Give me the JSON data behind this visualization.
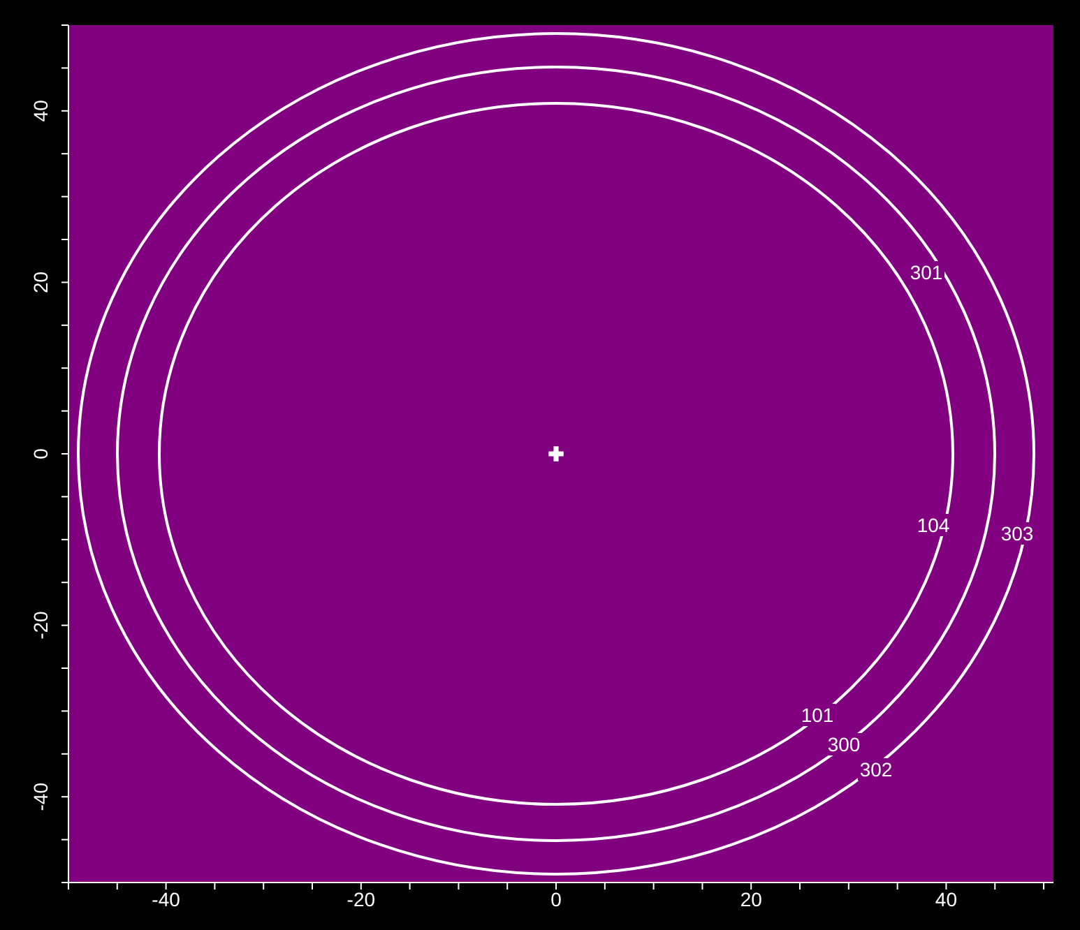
{
  "chart_data": {
    "type": "scatter",
    "xlim": [
      -50,
      51
    ],
    "ylim": [
      -50,
      50
    ],
    "xticks": [
      {
        "value": -50,
        "label": null
      },
      {
        "value": -45,
        "label": null
      },
      -40,
      {
        "value": -35,
        "label": null
      },
      {
        "value": -30,
        "label": null
      },
      {
        "value": -25,
        "label": null
      },
      -20,
      {
        "value": -15,
        "label": null
      },
      {
        "value": -10,
        "label": null
      },
      {
        "value": -5,
        "label": null
      },
      0,
      {
        "value": 5,
        "label": null
      },
      {
        "value": 10,
        "label": null
      },
      {
        "value": 15,
        "label": null
      },
      20,
      {
        "value": 25,
        "label": null
      },
      {
        "value": 30,
        "label": null
      },
      {
        "value": 35,
        "label": null
      },
      40,
      {
        "value": 45,
        "label": null
      },
      {
        "value": 50,
        "label": null
      }
    ],
    "yticks": [
      {
        "value": -50,
        "label": null
      },
      {
        "value": -45,
        "label": null
      },
      -40,
      {
        "value": -35,
        "label": null
      },
      {
        "value": -30,
        "label": null
      },
      {
        "value": -25,
        "label": null
      },
      -20,
      {
        "value": -15,
        "label": null
      },
      {
        "value": -10,
        "label": null
      },
      {
        "value": -5,
        "label": null
      },
      0,
      {
        "value": 5,
        "label": null
      },
      {
        "value": 10,
        "label": null
      },
      {
        "value": 15,
        "label": null
      },
      20,
      {
        "value": 25,
        "label": null
      },
      {
        "value": 30,
        "label": null
      },
      {
        "value": 35,
        "label": null
      },
      40,
      {
        "value": 45,
        "label": null
      },
      {
        "value": 50,
        "label": null
      }
    ],
    "grid": false,
    "marker": "cross",
    "series": [
      {
        "color": "#ffffff",
        "x": [
          0
        ],
        "values": [
          0
        ]
      }
    ],
    "annotations": [
      "301",
      "104",
      "303",
      "101",
      "300",
      "302"
    ]
  }
}
